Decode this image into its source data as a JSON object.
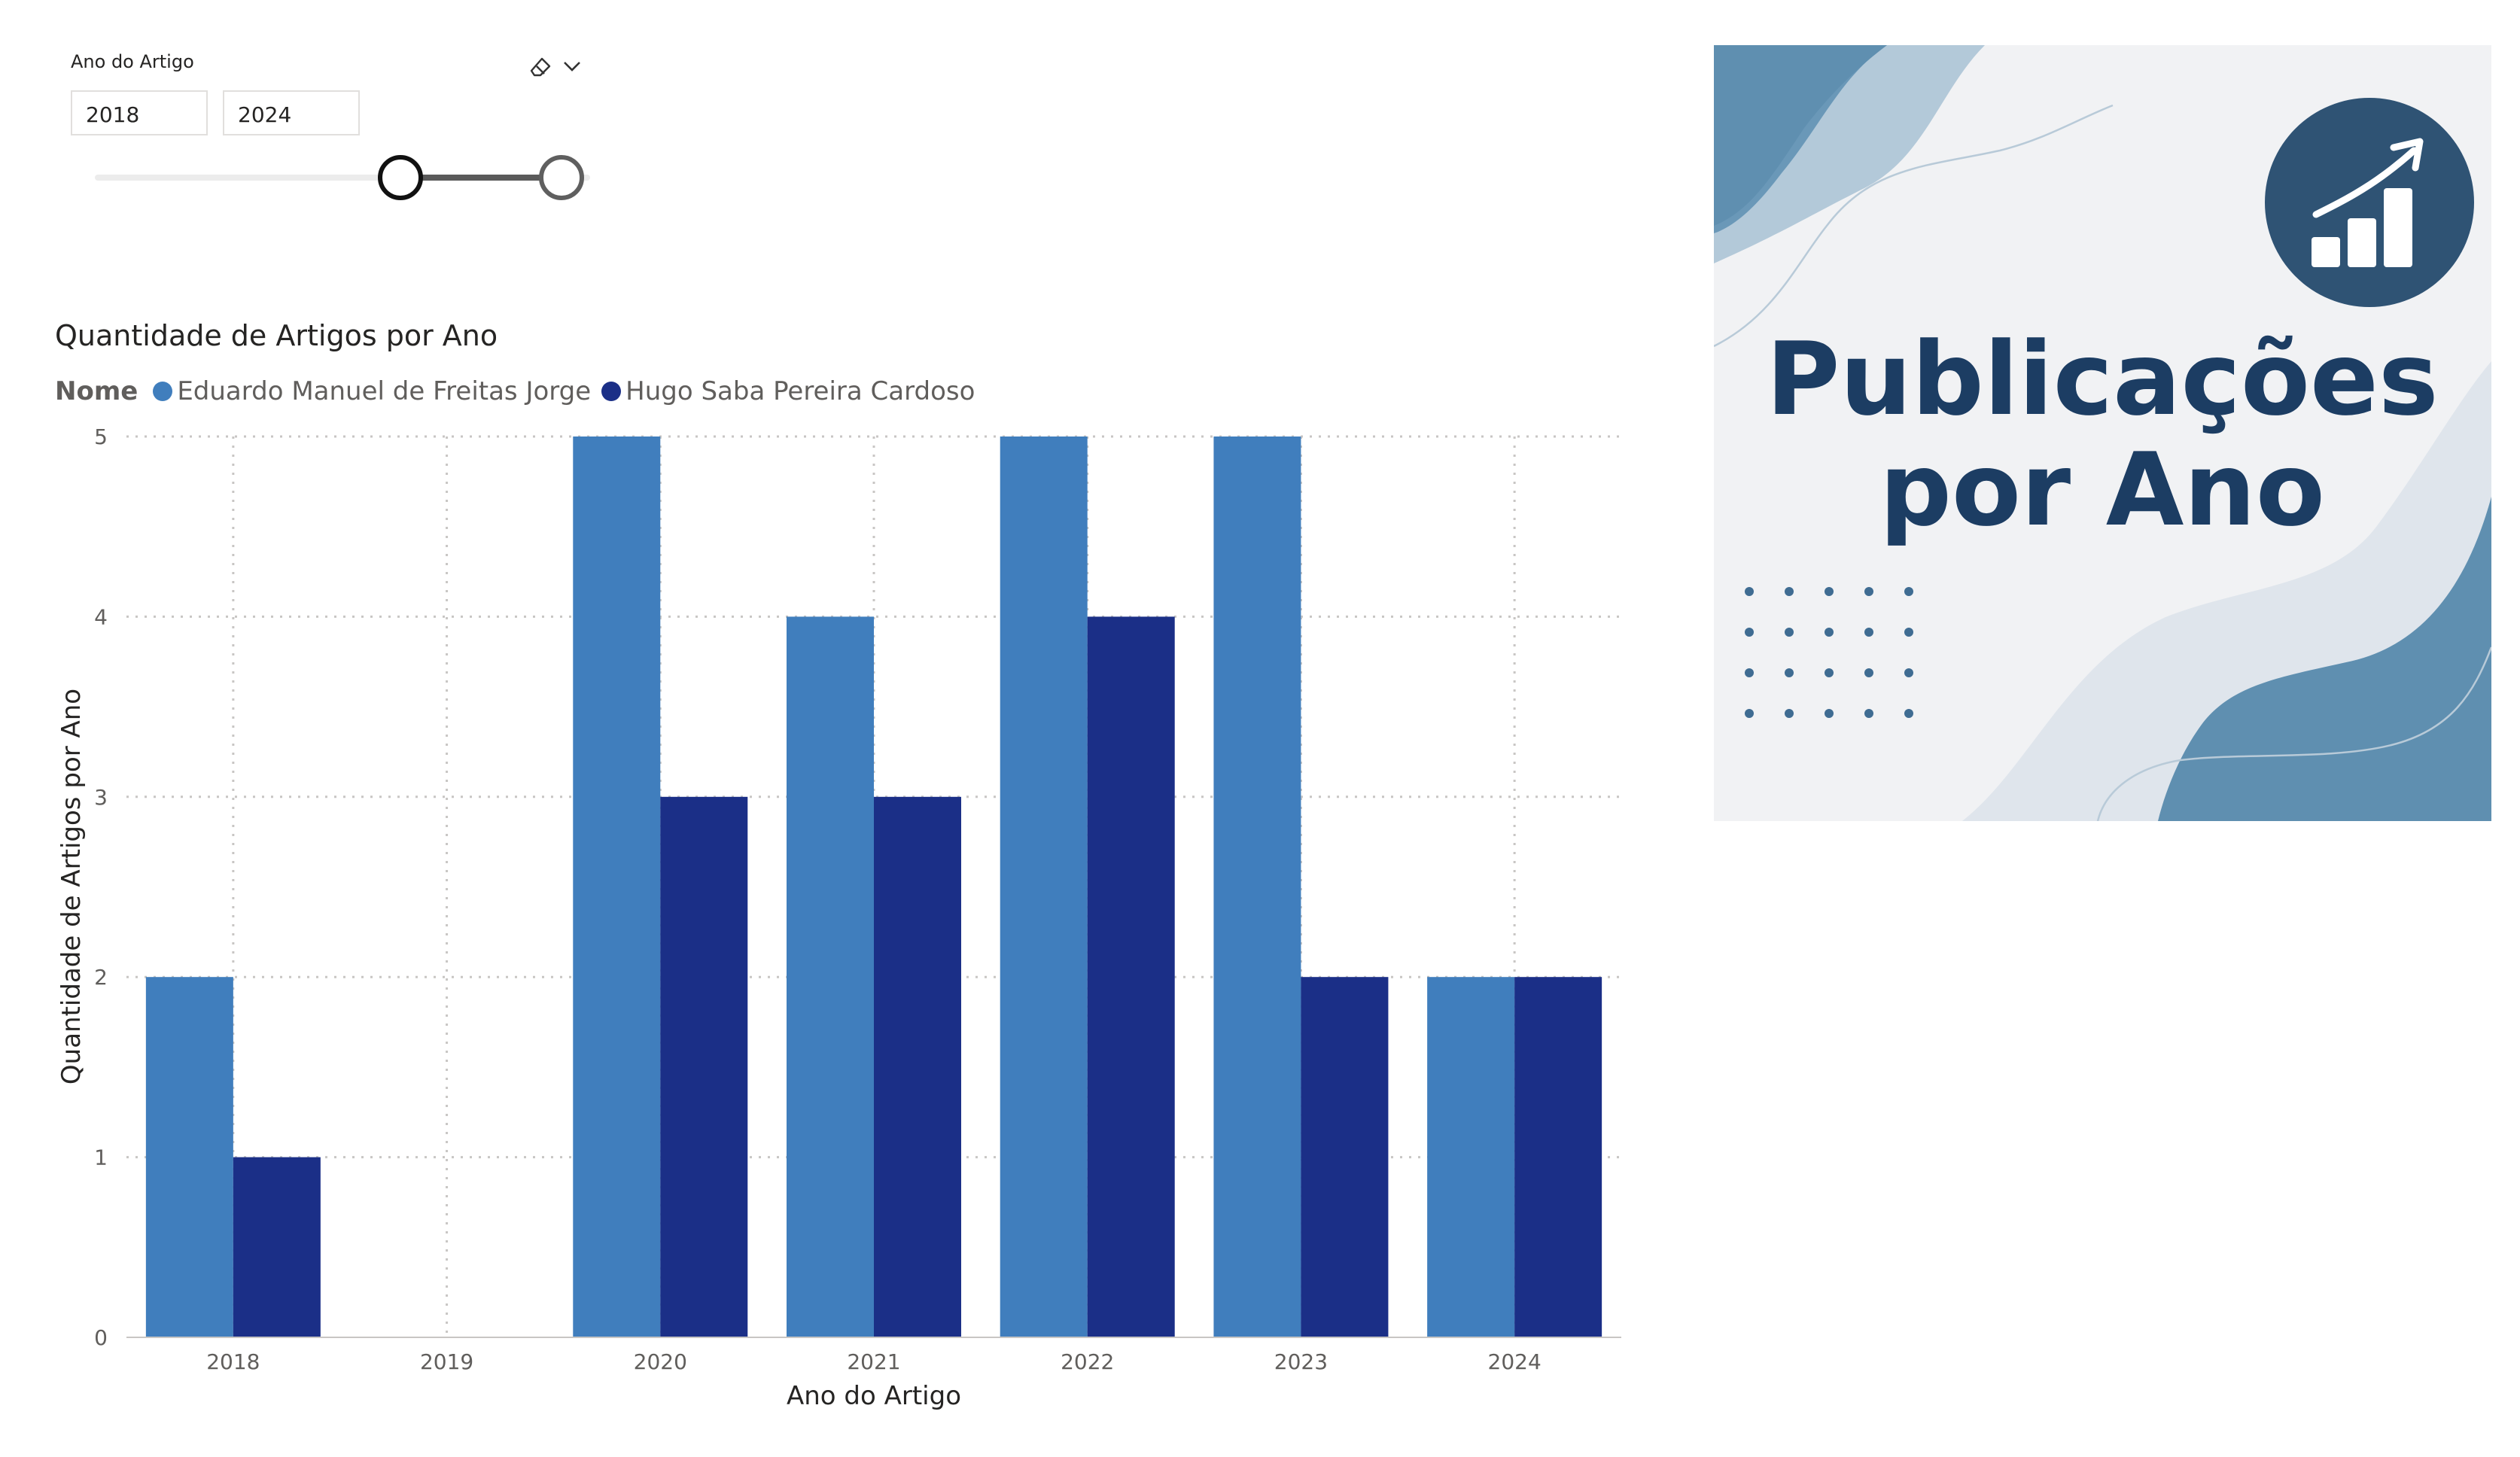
{
  "slicer": {
    "title": "Ano do Artigo",
    "min_value": "2018",
    "max_value": "2024",
    "clear_icon": "eraser-icon",
    "expand_icon": "chevron-down-icon"
  },
  "banner": {
    "title_line1": "Publicações",
    "title_line2": "por Ano",
    "icon": "chart-growth-icon",
    "colors": {
      "background": "#f1f2f4",
      "accent": "#5b8db0",
      "title": "#1c3d63",
      "icon_circle": "#2f5374"
    }
  },
  "chart_data": {
    "type": "bar",
    "title": "Quantidade de Artigos por Ano",
    "xlabel": "Ano do Artigo",
    "ylabel": "Quantidade de Artigos por Ano",
    "legend_title": "Nome",
    "legend_position": "top-left",
    "grid": true,
    "ylim": [
      0,
      5
    ],
    "yticks": [
      0,
      1,
      2,
      3,
      4,
      5
    ],
    "categories": [
      "2018",
      "2019",
      "2020",
      "2021",
      "2022",
      "2023",
      "2024"
    ],
    "series": [
      {
        "name": "Eduardo Manuel de Freitas Jorge",
        "color": "#407ebd",
        "values": [
          2,
          0,
          5,
          4,
          5,
          5,
          2
        ]
      },
      {
        "name": "Hugo Saba Pereira Cardoso",
        "color": "#1b2f87",
        "values": [
          1,
          0,
          3,
          3,
          4,
          2,
          2
        ]
      }
    ]
  }
}
